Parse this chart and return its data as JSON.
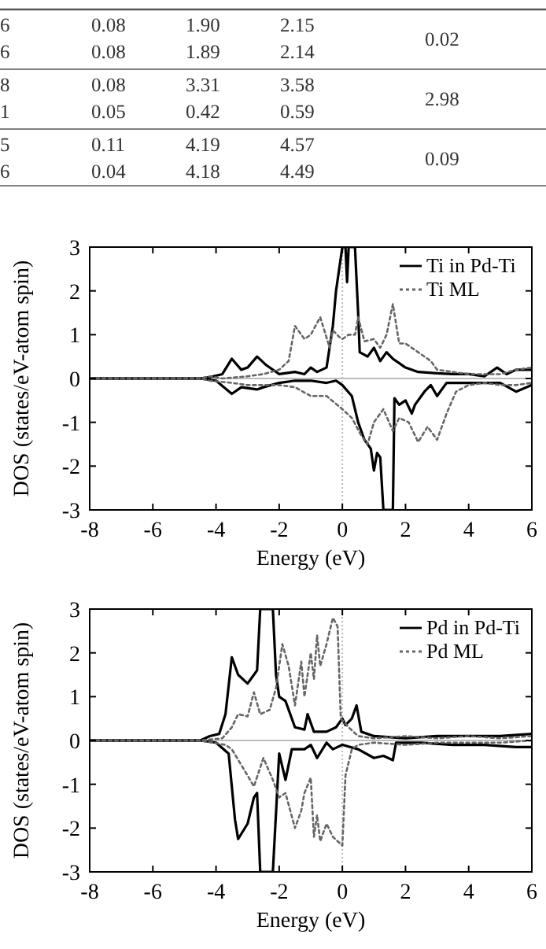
{
  "chart_data": [
    {
      "type": "other",
      "annotations": [
        "6",
        "0.08",
        "1.90",
        "2.15",
        "6",
        "0.08",
        "1.89",
        "2.14",
        "0.02",
        "8",
        "0.08",
        "3.31",
        "3.58",
        "1",
        "0.05",
        "0.42",
        "0.59",
        "2.98",
        "5",
        "0.11",
        "4.19",
        "4.57",
        "6",
        "0.04",
        "4.18",
        "4.49",
        "0.09"
      ]
    },
    {
      "type": "line",
      "xlabel": "Energy (eV)",
      "ylabel": "DOS (states/eV-atom spin)",
      "xlim": [
        -8,
        6
      ],
      "ylim": [
        -3,
        3
      ],
      "xticks": [
        -8,
        -6,
        -4,
        -2,
        0,
        2,
        4,
        6
      ],
      "yticks": [
        -3,
        -2,
        -1,
        0,
        1,
        2,
        3
      ],
      "legend": "top right",
      "grid": false,
      "ref_lines": [
        {
          "axis": "x",
          "value": 0,
          "color": "#bbbbbb",
          "line_style": "dotted"
        },
        {
          "axis": "y",
          "value": 0,
          "color": "#bbbbbb"
        }
      ],
      "series": [
        {
          "name": "Ti in Pd-Ti",
          "color": "#000000",
          "line_style": "solid",
          "x": [
            -8,
            -4.5,
            -4.2,
            -3.8,
            -3.5,
            -3.2,
            -3,
            -2.7,
            -2.4,
            -2,
            -1.5,
            -1.2,
            -1,
            -0.8,
            -0.5,
            -0.3,
            -0.2,
            -0.1,
            0,
            0.1,
            0.15,
            0.2,
            0.4,
            0.5,
            0.55,
            0.8,
            1,
            1.2,
            1.4,
            1.6,
            2,
            2.4,
            3,
            3.5,
            4,
            4.5,
            4.9,
            5.2,
            5.5,
            6
          ],
          "values": [
            0,
            0,
            0.03,
            0.1,
            0.45,
            0.2,
            0.25,
            0.5,
            0.3,
            0.1,
            0.15,
            0.1,
            0.25,
            0.15,
            0.25,
            1.2,
            2,
            2.5,
            3,
            3,
            2.2,
            3,
            3,
            1.5,
            0.6,
            0.5,
            0.7,
            0.4,
            0.6,
            0.45,
            0.25,
            0.15,
            0.12,
            0.1,
            0.1,
            0.05,
            0.25,
            0.1,
            0.2,
            0.2
          ]
        },
        {
          "color": "#000000",
          "line_style": "solid",
          "x": [
            -8,
            -4.5,
            -4,
            -3.5,
            -3.2,
            -2.7,
            -2.5,
            -2,
            -1.5,
            -1,
            -0.5,
            -0.2,
            0,
            0.3,
            0.5,
            0.7,
            0.9,
            1,
            1.1,
            1.2,
            1.3,
            1.6,
            1.65,
            1.8,
            2,
            2.2,
            2.3,
            2.6,
            2.8,
            3,
            3.3,
            3.8,
            4.5,
            5,
            5.5,
            6
          ],
          "values": [
            0,
            0,
            -0.05,
            -0.35,
            -0.2,
            -0.25,
            -0.2,
            -0.1,
            -0.05,
            -0.05,
            -0.1,
            -0.05,
            -0.15,
            -0.4,
            -1,
            -1.4,
            -1.6,
            -2.1,
            -1.7,
            -1.8,
            -3,
            -3,
            -0.45,
            -0.6,
            -0.5,
            -0.8,
            -0.6,
            -0.3,
            -0.15,
            -0.4,
            -0.1,
            -0.1,
            -0.1,
            -0.1,
            -0.3,
            -0.15
          ]
        },
        {
          "name": "Ti ML",
          "color": "#666666",
          "line_style": "dotted",
          "x": [
            -8,
            -4.5,
            -4.2,
            -3.8,
            -3,
            -2.5,
            -2,
            -1.7,
            -1.5,
            -1.2,
            -1,
            -0.7,
            -0.4,
            -0.3,
            -0.1,
            0,
            0.2,
            0.4,
            0.5,
            0.7,
            1,
            1.2,
            1.4,
            1.6,
            1.8,
            2,
            2.4,
            2.8,
            3,
            3.5,
            4,
            5,
            5.5,
            6
          ],
          "values": [
            0,
            0,
            0.05,
            0,
            0.05,
            0.1,
            0.2,
            0.4,
            1.2,
            0.9,
            1,
            1.4,
            0.7,
            1.1,
            0.95,
            0.9,
            1,
            1,
            1.4,
            0.85,
            0.9,
            0.7,
            1,
            1.7,
            0.8,
            0.8,
            0.6,
            0.4,
            0.2,
            0.15,
            0.1,
            0.1,
            0.2,
            0.25
          ]
        },
        {
          "color": "#666666",
          "line_style": "dotted",
          "x": [
            -8,
            -4.5,
            -4.2,
            -3.5,
            -3,
            -2,
            -1.5,
            -1,
            -0.5,
            0,
            0.3,
            0.6,
            0.8,
            1,
            1.3,
            1.6,
            1.8,
            2.1,
            2.4,
            2.7,
            3,
            3.3,
            3.6,
            4,
            4.5,
            5,
            5.5,
            6
          ],
          "values": [
            0,
            0,
            -0.05,
            -0.1,
            -0.15,
            -0.15,
            -0.2,
            -0.4,
            -0.4,
            -0.7,
            -0.9,
            -1.3,
            -1.5,
            -1,
            -0.7,
            -1.2,
            -0.9,
            -1,
            -1.45,
            -1.1,
            -1.4,
            -0.8,
            -0.3,
            -0.15,
            -0.1,
            -0.15,
            -0.15,
            -0.1
          ]
        }
      ]
    },
    {
      "type": "line",
      "xlabel": "Energy (eV)",
      "ylabel": "DOS (states/eV-atom spin)",
      "xlim": [
        -8,
        6
      ],
      "ylim": [
        -3,
        3
      ],
      "xticks": [
        -8,
        -6,
        -4,
        -2,
        0,
        2,
        4,
        6
      ],
      "yticks": [
        -3,
        -2,
        -1,
        0,
        1,
        2,
        3
      ],
      "legend": "top right",
      "grid": false,
      "ref_lines": [
        {
          "axis": "x",
          "value": 0,
          "color": "#bbbbbb",
          "line_style": "dotted"
        },
        {
          "axis": "y",
          "value": 0,
          "color": "#bbbbbb"
        }
      ],
      "series": [
        {
          "name": "Pd in Pd-Ti",
          "color": "#000000",
          "line_style": "solid",
          "x": [
            -8,
            -4.5,
            -4.2,
            -3.9,
            -3.7,
            -3.5,
            -3.3,
            -3,
            -2.8,
            -2.7,
            -2.6,
            -2.2,
            -2.1,
            -2,
            -1.8,
            -1.5,
            -1.2,
            -1.1,
            -0.9,
            -0.5,
            -0.2,
            0,
            0.1,
            0.3,
            0.45,
            0.6,
            1,
            2,
            3,
            4,
            5,
            6
          ],
          "values": [
            0,
            0,
            0.1,
            0.15,
            0.6,
            1.9,
            1.5,
            1.3,
            1.5,
            1.6,
            3,
            3,
            1.5,
            1,
            0.9,
            0.3,
            0.25,
            0.6,
            0.2,
            0.2,
            0.3,
            0.5,
            0.35,
            0.5,
            0.8,
            0.2,
            0.1,
            0.05,
            0.1,
            0.1,
            0.1,
            0.15
          ]
        },
        {
          "color": "#000000",
          "line_style": "solid",
          "x": [
            -8,
            -4.5,
            -4,
            -3.6,
            -3.4,
            -3.3,
            -3,
            -2.8,
            -2.7,
            -2.6,
            -2.2,
            -2,
            -1.9,
            -1.8,
            -1.6,
            -1.2,
            -1,
            -0.8,
            -0.5,
            -0.3,
            0,
            0.5,
            1,
            1.3,
            1.6,
            1.7,
            2.5,
            3.5,
            4.5,
            5.5,
            6
          ],
          "values": [
            0,
            0,
            -0.05,
            -0.3,
            -1.8,
            -2.25,
            -1.9,
            -1.3,
            -1.2,
            -3,
            -3,
            -0.3,
            -0.6,
            -0.9,
            -0.2,
            -0.2,
            -0.1,
            -0.4,
            -0.05,
            -0.2,
            -0.1,
            -0.2,
            -0.4,
            -0.35,
            -0.45,
            -0.05,
            -0.05,
            -0.1,
            -0.1,
            -0.15,
            -0.15
          ]
        },
        {
          "name": "Pd ML",
          "color": "#666666",
          "line_style": "dotted",
          "x": [
            -8,
            -4.5,
            -3.8,
            -3.5,
            -3.3,
            -3,
            -2.8,
            -2.6,
            -2.3,
            -2.1,
            -1.9,
            -1.7,
            -1.5,
            -1.3,
            -1.2,
            -1,
            -0.9,
            -0.8,
            -0.7,
            -0.5,
            -0.3,
            -0.15,
            -0.05,
            0.2,
            0.5,
            1,
            2,
            3,
            4,
            5,
            6
          ],
          "values": [
            0,
            0,
            0.05,
            0.3,
            0.6,
            0.55,
            1.1,
            0.6,
            0.7,
            1.2,
            2.2,
            1.7,
            0.8,
            1.8,
            1,
            2,
            1.4,
            2.4,
            1.7,
            2.2,
            2.8,
            2.6,
            0.5,
            0.3,
            0.1,
            0.05,
            0.1,
            0.05,
            0.1,
            0.05,
            0.1
          ]
        },
        {
          "color": "#666666",
          "line_style": "dotted",
          "x": [
            -8,
            -4.5,
            -3.7,
            -3.5,
            -3,
            -2.8,
            -2.5,
            -2.2,
            -2,
            -1.8,
            -1.5,
            -1.3,
            -1.2,
            -1,
            -0.9,
            -0.8,
            -0.7,
            -0.5,
            -0.3,
            0,
            0.1,
            0.3,
            0.5,
            1,
            2,
            3,
            4,
            5,
            6
          ],
          "values": [
            0,
            0,
            -0.1,
            -0.2,
            -0.8,
            -1.05,
            -0.4,
            -0.9,
            -1.3,
            -1.2,
            -2,
            -1.6,
            -1.2,
            -0.85,
            -2.2,
            -1.7,
            -2.3,
            -1.9,
            -2.2,
            -2.4,
            -0.8,
            -0.2,
            -0.1,
            -0.05,
            -0.1,
            -0.05,
            -0.05,
            -0.05,
            0
          ]
        }
      ]
    }
  ]
}
